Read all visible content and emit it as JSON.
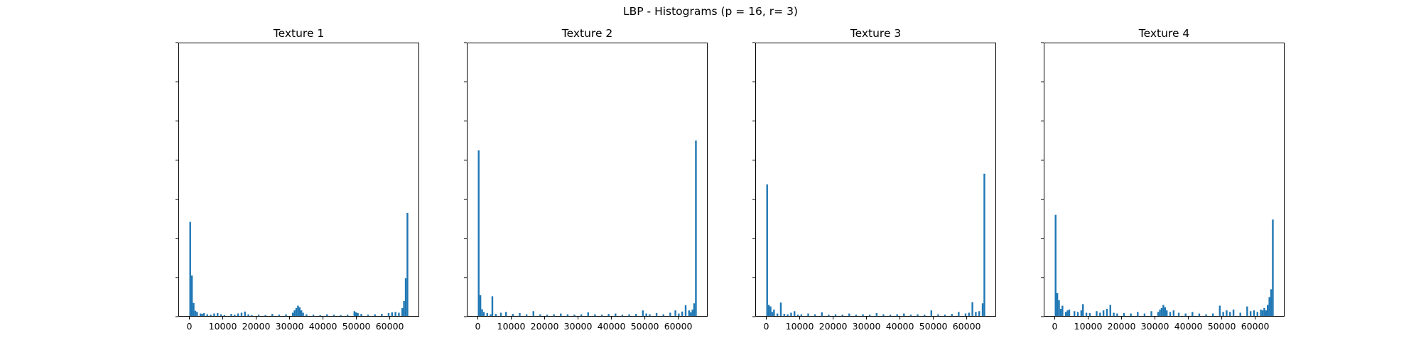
{
  "figure": {
    "title": "LBP - Histograms (p = 16, r= 3)",
    "bar_color": "#1f77b4"
  },
  "chart_data": [
    {
      "type": "bar",
      "title": "Texture 1",
      "xlabel": "",
      "ylabel": "",
      "xlim": [
        -3300,
        68800
      ],
      "ylim": [
        0,
        0.07
      ],
      "x_ticks": [
        0,
        10000,
        20000,
        30000,
        40000,
        50000,
        60000
      ],
      "x_tick_labels": [
        "0",
        "10000",
        "20000",
        "30000",
        "40000",
        "50000",
        "60000"
      ],
      "y_ticks": [
        0,
        0.01,
        0.02,
        0.03,
        0.04,
        0.05,
        0.06,
        0.07
      ],
      "y_tick_labels_visible": false,
      "bin_width": 512,
      "grid": false,
      "bars": [
        {
          "x": 0,
          "y": 0.0242
        },
        {
          "x": 512,
          "y": 0.0105
        },
        {
          "x": 1024,
          "y": 0.0035
        },
        {
          "x": 1536,
          "y": 0.0015
        },
        {
          "x": 2048,
          "y": 0.0012
        },
        {
          "x": 3072,
          "y": 0.0008
        },
        {
          "x": 3584,
          "y": 0.0007
        },
        {
          "x": 4096,
          "y": 0.0009
        },
        {
          "x": 5120,
          "y": 0.0006
        },
        {
          "x": 6144,
          "y": 0.0005
        },
        {
          "x": 7168,
          "y": 0.0008
        },
        {
          "x": 8192,
          "y": 0.0009
        },
        {
          "x": 9216,
          "y": 0.0006
        },
        {
          "x": 10240,
          "y": 0.0004
        },
        {
          "x": 12288,
          "y": 0.0007
        },
        {
          "x": 13312,
          "y": 0.0005
        },
        {
          "x": 14336,
          "y": 0.0008
        },
        {
          "x": 15360,
          "y": 0.001
        },
        {
          "x": 16384,
          "y": 0.0013
        },
        {
          "x": 17408,
          "y": 0.0006
        },
        {
          "x": 18432,
          "y": 0.0004
        },
        {
          "x": 20480,
          "y": 0.0005
        },
        {
          "x": 22528,
          "y": 0.0004
        },
        {
          "x": 24576,
          "y": 0.0007
        },
        {
          "x": 26624,
          "y": 0.0005
        },
        {
          "x": 28672,
          "y": 0.0006
        },
        {
          "x": 30720,
          "y": 0.001
        },
        {
          "x": 31232,
          "y": 0.0016
        },
        {
          "x": 31744,
          "y": 0.0022
        },
        {
          "x": 32256,
          "y": 0.0028
        },
        {
          "x": 32768,
          "y": 0.0024
        },
        {
          "x": 33280,
          "y": 0.0016
        },
        {
          "x": 33792,
          "y": 0.001
        },
        {
          "x": 34816,
          "y": 0.0006
        },
        {
          "x": 36864,
          "y": 0.0005
        },
        {
          "x": 38912,
          "y": 0.0004
        },
        {
          "x": 40960,
          "y": 0.0006
        },
        {
          "x": 43008,
          "y": 0.0005
        },
        {
          "x": 45056,
          "y": 0.0004
        },
        {
          "x": 47104,
          "y": 0.0005
        },
        {
          "x": 49152,
          "y": 0.0014
        },
        {
          "x": 49664,
          "y": 0.0011
        },
        {
          "x": 50176,
          "y": 0.0009
        },
        {
          "x": 51200,
          "y": 0.0007
        },
        {
          "x": 53248,
          "y": 0.0005
        },
        {
          "x": 55296,
          "y": 0.0006
        },
        {
          "x": 57344,
          "y": 0.0007
        },
        {
          "x": 59392,
          "y": 0.0009
        },
        {
          "x": 60416,
          "y": 0.0011
        },
        {
          "x": 61440,
          "y": 0.0012
        },
        {
          "x": 62464,
          "y": 0.001
        },
        {
          "x": 63488,
          "y": 0.0022
        },
        {
          "x": 64000,
          "y": 0.004
        },
        {
          "x": 64512,
          "y": 0.0098
        },
        {
          "x": 65024,
          "y": 0.0265
        }
      ]
    },
    {
      "type": "bar",
      "title": "Texture 2",
      "xlabel": "",
      "ylabel": "",
      "xlim": [
        -3300,
        68800
      ],
      "ylim": [
        0,
        0.07
      ],
      "x_ticks": [
        0,
        10000,
        20000,
        30000,
        40000,
        50000,
        60000
      ],
      "x_tick_labels": [
        "0",
        "10000",
        "20000",
        "30000",
        "40000",
        "50000",
        "60000"
      ],
      "y_ticks": [
        0,
        0.01,
        0.02,
        0.03,
        0.04,
        0.05,
        0.06,
        0.07
      ],
      "y_tick_labels_visible": false,
      "bin_width": 512,
      "grid": false,
      "bars": [
        {
          "x": 0,
          "y": 0.0425
        },
        {
          "x": 512,
          "y": 0.0055
        },
        {
          "x": 1024,
          "y": 0.0019
        },
        {
          "x": 1536,
          "y": 0.0012
        },
        {
          "x": 2560,
          "y": 0.0009
        },
        {
          "x": 3584,
          "y": 0.0006
        },
        {
          "x": 4096,
          "y": 0.0052
        },
        {
          "x": 5120,
          "y": 0.0007
        },
        {
          "x": 6656,
          "y": 0.001
        },
        {
          "x": 8192,
          "y": 0.0012
        },
        {
          "x": 10240,
          "y": 0.0007
        },
        {
          "x": 12288,
          "y": 0.0009
        },
        {
          "x": 14336,
          "y": 0.0006
        },
        {
          "x": 16384,
          "y": 0.0014
        },
        {
          "x": 18432,
          "y": 0.0006
        },
        {
          "x": 20480,
          "y": 0.0005
        },
        {
          "x": 22528,
          "y": 0.0006
        },
        {
          "x": 24576,
          "y": 0.0008
        },
        {
          "x": 26624,
          "y": 0.0006
        },
        {
          "x": 28672,
          "y": 0.0005
        },
        {
          "x": 30720,
          "y": 0.0006
        },
        {
          "x": 32768,
          "y": 0.0011
        },
        {
          "x": 34816,
          "y": 0.0006
        },
        {
          "x": 36864,
          "y": 0.0005
        },
        {
          "x": 38912,
          "y": 0.0007
        },
        {
          "x": 40960,
          "y": 0.0008
        },
        {
          "x": 43008,
          "y": 0.0005
        },
        {
          "x": 45056,
          "y": 0.0006
        },
        {
          "x": 47104,
          "y": 0.0007
        },
        {
          "x": 49152,
          "y": 0.0016
        },
        {
          "x": 50176,
          "y": 0.0008
        },
        {
          "x": 51200,
          "y": 0.0006
        },
        {
          "x": 53248,
          "y": 0.0009
        },
        {
          "x": 55296,
          "y": 0.0006
        },
        {
          "x": 57344,
          "y": 0.001
        },
        {
          "x": 58880,
          "y": 0.0016
        },
        {
          "x": 59904,
          "y": 0.0008
        },
        {
          "x": 60928,
          "y": 0.0013
        },
        {
          "x": 61952,
          "y": 0.0029
        },
        {
          "x": 62976,
          "y": 0.0016
        },
        {
          "x": 63488,
          "y": 0.0011
        },
        {
          "x": 64000,
          "y": 0.0018
        },
        {
          "x": 64512,
          "y": 0.0034
        },
        {
          "x": 65024,
          "y": 0.045
        }
      ]
    },
    {
      "type": "bar",
      "title": "Texture 3",
      "xlabel": "",
      "ylabel": "",
      "xlim": [
        -3300,
        68800
      ],
      "ylim": [
        0,
        0.07
      ],
      "x_ticks": [
        0,
        10000,
        20000,
        30000,
        40000,
        50000,
        60000
      ],
      "x_tick_labels": [
        "0",
        "10000",
        "20000",
        "30000",
        "40000",
        "50000",
        "60000"
      ],
      "y_ticks": [
        0,
        0.01,
        0.02,
        0.03,
        0.04,
        0.05,
        0.06,
        0.07
      ],
      "y_tick_labels_visible": false,
      "bin_width": 512,
      "grid": false,
      "bars": [
        {
          "x": 0,
          "y": 0.0338
        },
        {
          "x": 512,
          "y": 0.003
        },
        {
          "x": 1024,
          "y": 0.0026
        },
        {
          "x": 1536,
          "y": 0.0012
        },
        {
          "x": 2048,
          "y": 0.0018
        },
        {
          "x": 3072,
          "y": 0.0008
        },
        {
          "x": 4096,
          "y": 0.0036
        },
        {
          "x": 5120,
          "y": 0.0007
        },
        {
          "x": 6144,
          "y": 0.0006
        },
        {
          "x": 7168,
          "y": 0.001
        },
        {
          "x": 8192,
          "y": 0.0014
        },
        {
          "x": 9216,
          "y": 0.0005
        },
        {
          "x": 10240,
          "y": 0.0006
        },
        {
          "x": 12288,
          "y": 0.0008
        },
        {
          "x": 14336,
          "y": 0.0006
        },
        {
          "x": 16384,
          "y": 0.0011
        },
        {
          "x": 18432,
          "y": 0.0005
        },
        {
          "x": 20480,
          "y": 0.0006
        },
        {
          "x": 22528,
          "y": 0.0005
        },
        {
          "x": 24576,
          "y": 0.0008
        },
        {
          "x": 26624,
          "y": 0.0005
        },
        {
          "x": 28672,
          "y": 0.0006
        },
        {
          "x": 30720,
          "y": 0.0005
        },
        {
          "x": 32768,
          "y": 0.0009
        },
        {
          "x": 34816,
          "y": 0.0006
        },
        {
          "x": 36864,
          "y": 0.0005
        },
        {
          "x": 38912,
          "y": 0.0006
        },
        {
          "x": 40960,
          "y": 0.0008
        },
        {
          "x": 43008,
          "y": 0.0005
        },
        {
          "x": 45056,
          "y": 0.0006
        },
        {
          "x": 47104,
          "y": 0.0005
        },
        {
          "x": 49152,
          "y": 0.0016
        },
        {
          "x": 51200,
          "y": 0.0006
        },
        {
          "x": 53248,
          "y": 0.0005
        },
        {
          "x": 55296,
          "y": 0.0007
        },
        {
          "x": 57344,
          "y": 0.0012
        },
        {
          "x": 59392,
          "y": 0.0008
        },
        {
          "x": 60416,
          "y": 0.001
        },
        {
          "x": 61440,
          "y": 0.0037
        },
        {
          "x": 62464,
          "y": 0.0012
        },
        {
          "x": 63488,
          "y": 0.0014
        },
        {
          "x": 64512,
          "y": 0.0034
        },
        {
          "x": 65024,
          "y": 0.0365
        }
      ]
    },
    {
      "type": "bar",
      "title": "Texture 4",
      "xlabel": "",
      "ylabel": "",
      "xlim": [
        -3300,
        68800
      ],
      "ylim": [
        0,
        0.07
      ],
      "x_ticks": [
        0,
        10000,
        20000,
        30000,
        40000,
        50000,
        60000
      ],
      "x_tick_labels": [
        "0",
        "10000",
        "20000",
        "30000",
        "40000",
        "50000",
        "60000"
      ],
      "y_ticks": [
        0,
        0.01,
        0.02,
        0.03,
        0.04,
        0.05,
        0.06,
        0.07
      ],
      "y_tick_labels_visible": false,
      "bin_width": 512,
      "grid": false,
      "bars": [
        {
          "x": 0,
          "y": 0.026
        },
        {
          "x": 512,
          "y": 0.006
        },
        {
          "x": 1024,
          "y": 0.0042
        },
        {
          "x": 1536,
          "y": 0.002
        },
        {
          "x": 2048,
          "y": 0.0028
        },
        {
          "x": 3072,
          "y": 0.0012
        },
        {
          "x": 3584,
          "y": 0.0016
        },
        {
          "x": 4096,
          "y": 0.0018
        },
        {
          "x": 5632,
          "y": 0.0014
        },
        {
          "x": 6656,
          "y": 0.0012
        },
        {
          "x": 7680,
          "y": 0.0016
        },
        {
          "x": 8192,
          "y": 0.0032
        },
        {
          "x": 9216,
          "y": 0.001
        },
        {
          "x": 10240,
          "y": 0.0009
        },
        {
          "x": 12288,
          "y": 0.0014
        },
        {
          "x": 13312,
          "y": 0.001
        },
        {
          "x": 14336,
          "y": 0.0016
        },
        {
          "x": 15360,
          "y": 0.002
        },
        {
          "x": 16384,
          "y": 0.003
        },
        {
          "x": 17408,
          "y": 0.001
        },
        {
          "x": 18432,
          "y": 0.0008
        },
        {
          "x": 20480,
          "y": 0.0009
        },
        {
          "x": 22528,
          "y": 0.0008
        },
        {
          "x": 24576,
          "y": 0.0012
        },
        {
          "x": 26624,
          "y": 0.0008
        },
        {
          "x": 28672,
          "y": 0.0014
        },
        {
          "x": 30720,
          "y": 0.0012
        },
        {
          "x": 31232,
          "y": 0.0018
        },
        {
          "x": 31744,
          "y": 0.0022
        },
        {
          "x": 32256,
          "y": 0.003
        },
        {
          "x": 32768,
          "y": 0.0024
        },
        {
          "x": 33280,
          "y": 0.0016
        },
        {
          "x": 34304,
          "y": 0.0012
        },
        {
          "x": 35328,
          "y": 0.0016
        },
        {
          "x": 36864,
          "y": 0.001
        },
        {
          "x": 38912,
          "y": 0.0008
        },
        {
          "x": 40960,
          "y": 0.0012
        },
        {
          "x": 43008,
          "y": 0.0008
        },
        {
          "x": 45056,
          "y": 0.0006
        },
        {
          "x": 47104,
          "y": 0.0008
        },
        {
          "x": 49152,
          "y": 0.0028
        },
        {
          "x": 50176,
          "y": 0.0012
        },
        {
          "x": 51200,
          "y": 0.0016
        },
        {
          "x": 52224,
          "y": 0.0012
        },
        {
          "x": 53248,
          "y": 0.0018
        },
        {
          "x": 55296,
          "y": 0.001
        },
        {
          "x": 57344,
          "y": 0.0026
        },
        {
          "x": 58368,
          "y": 0.0014
        },
        {
          "x": 59392,
          "y": 0.0016
        },
        {
          "x": 60416,
          "y": 0.0012
        },
        {
          "x": 61440,
          "y": 0.0018
        },
        {
          "x": 61952,
          "y": 0.0016
        },
        {
          "x": 62464,
          "y": 0.0022
        },
        {
          "x": 62976,
          "y": 0.0016
        },
        {
          "x": 63488,
          "y": 0.003
        },
        {
          "x": 64000,
          "y": 0.005
        },
        {
          "x": 64512,
          "y": 0.007
        },
        {
          "x": 65024,
          "y": 0.0248
        }
      ]
    }
  ]
}
